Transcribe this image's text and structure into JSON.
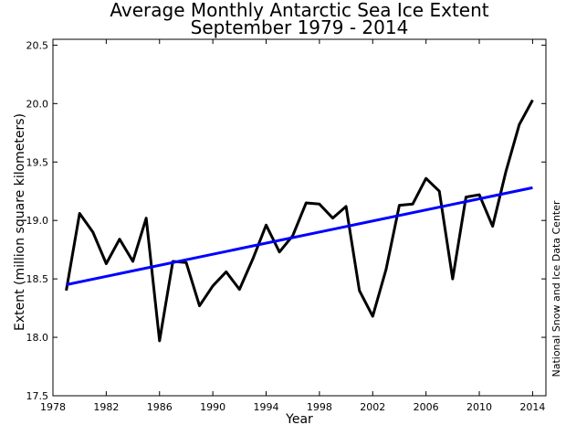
{
  "chart_data": {
    "type": "line",
    "title": "Average Monthly Antarctic Sea Ice Extent",
    "subtitle": "September 1979 - 2014",
    "xlabel": "Year",
    "ylabel": "Extent (million square kilometers)",
    "credit": "National Snow and Ice Data Center",
    "xlim": [
      1978,
      2015
    ],
    "ylim": [
      17.5,
      20.55
    ],
    "xticks": [
      1978,
      1982,
      1986,
      1990,
      1994,
      1998,
      2002,
      2006,
      2010,
      2014
    ],
    "yticks": [
      17.5,
      18.0,
      18.5,
      19.0,
      19.5,
      20.0,
      20.5
    ],
    "yticks_labels": [
      "17.5",
      "18.0",
      "18.5",
      "19.0",
      "19.5",
      "20.0",
      "20.5"
    ],
    "grid": false,
    "series": [
      {
        "color": "#000000",
        "x": [
          1979,
          1980,
          1981,
          1982,
          1983,
          1984,
          1985,
          1986,
          1987,
          1988,
          1989,
          1990,
          1991,
          1992,
          1993,
          1994,
          1995,
          1996,
          1997,
          1998,
          1999,
          2000,
          2001,
          2002,
          2003,
          2004,
          2005,
          2006,
          2007,
          2008,
          2009,
          2010,
          2011,
          2012,
          2013,
          2014
        ],
        "y": [
          18.4,
          19.06,
          18.9,
          18.63,
          18.84,
          18.65,
          19.02,
          17.97,
          18.65,
          18.64,
          18.27,
          18.44,
          18.56,
          18.41,
          18.67,
          18.96,
          18.73,
          18.87,
          19.15,
          19.14,
          19.02,
          19.12,
          18.4,
          18.18,
          18.58,
          19.13,
          19.14,
          19.36,
          19.25,
          18.5,
          19.2,
          19.22,
          18.95,
          19.42,
          19.82,
          20.03
        ]
      },
      {
        "color": "#0000ff",
        "x": [
          1979,
          2014
        ],
        "y": [
          18.45,
          19.28
        ]
      }
    ]
  }
}
